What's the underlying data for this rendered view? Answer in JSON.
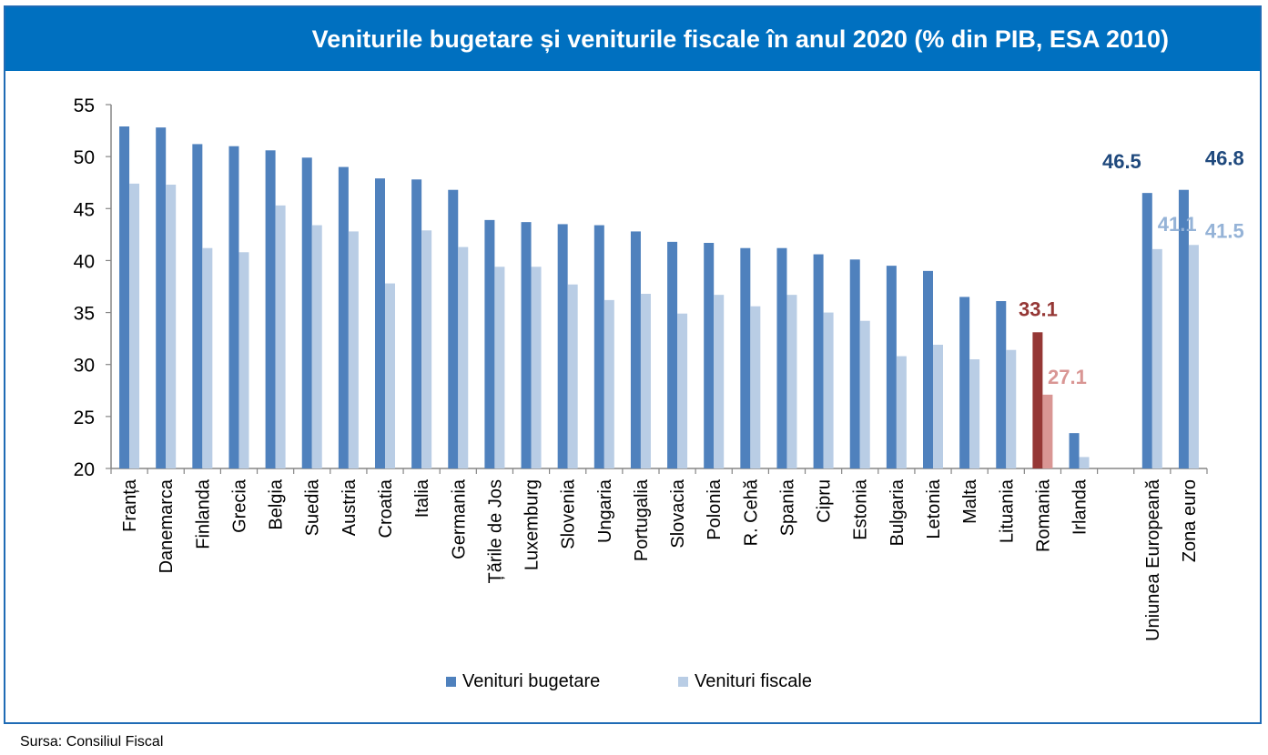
{
  "chart_data": {
    "type": "bar",
    "title": "Veniturile bugetare și veniturile fiscale în anul 2020 (% din PIB, ESA 2010)",
    "xlabel": "",
    "ylabel": "",
    "ylim": [
      20,
      55
    ],
    "yticks": [
      20,
      25,
      30,
      35,
      40,
      45,
      50,
      55
    ],
    "grid": false,
    "legend_position": "bottom",
    "categories": [
      "Franța",
      "Danemarca",
      "Finlanda",
      "Grecia",
      "Belgia",
      "Suedia",
      "Austria",
      "Croatia",
      "Italia",
      "Germania",
      "Țările de Jos",
      "Luxemburg",
      "Slovenia",
      "Ungaria",
      "Portugalia",
      "Slovacia",
      "Polonia",
      "R. Cehă",
      "Spania",
      "Cipru",
      "Estonia",
      "Bulgaria",
      "Letonia",
      "Malta",
      "Lituania",
      "Romania",
      "Irlanda",
      "",
      "Uniunea Europeană",
      "Zona euro"
    ],
    "series": [
      {
        "name": "Venituri bugetare",
        "color": "#4f81bd",
        "values": [
          52.9,
          52.8,
          51.2,
          51.0,
          50.6,
          49.9,
          49.0,
          47.9,
          47.8,
          46.8,
          43.9,
          43.7,
          43.5,
          43.4,
          42.8,
          41.8,
          41.7,
          41.2,
          41.2,
          40.6,
          40.1,
          39.5,
          39.0,
          36.5,
          36.1,
          33.1,
          23.4,
          null,
          46.5,
          46.8
        ]
      },
      {
        "name": "Venituri fiscale",
        "color": "#b9cde5",
        "values": [
          47.4,
          47.3,
          41.2,
          40.8,
          45.3,
          43.4,
          42.8,
          37.8,
          42.9,
          41.3,
          39.4,
          39.4,
          37.7,
          36.2,
          36.8,
          34.9,
          36.7,
          35.6,
          36.7,
          35.0,
          34.2,
          30.8,
          31.9,
          30.5,
          31.4,
          27.1,
          21.1,
          null,
          41.1,
          41.5
        ]
      }
    ],
    "highlight": {
      "category": "Romania",
      "colors": [
        "#953735",
        "#d99694"
      ]
    },
    "annotations": [
      {
        "category": "Romania",
        "series": 0,
        "text": "33.1",
        "color": "#953735"
      },
      {
        "category": "Romania",
        "series": 1,
        "text": "27.1",
        "color": "#d99694"
      },
      {
        "category": "Uniunea Europeană",
        "series": 0,
        "text": "46.5",
        "color": "#1f497d"
      },
      {
        "category": "Uniunea Europeană",
        "series": 1,
        "text": "41.1",
        "color": "#95b3d7"
      },
      {
        "category": "Zona euro",
        "series": 0,
        "text": "46.8",
        "color": "#1f497d"
      },
      {
        "category": "Zona euro",
        "series": 1,
        "text": "41.5",
        "color": "#95b3d7"
      }
    ]
  },
  "source": "Sursa: Consiliul Fiscal"
}
